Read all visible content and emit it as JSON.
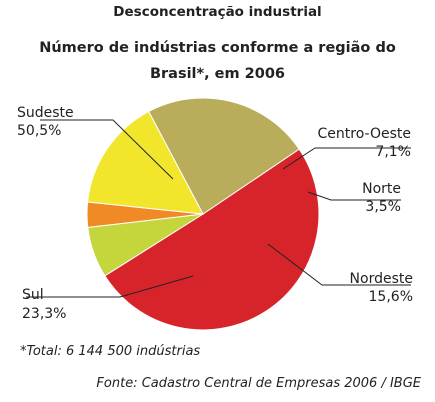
{
  "super_title": "Desconcentração industrial",
  "title_line1": "Número de indústrias conforme a região do",
  "title_line2": "Brasil*, em 2006",
  "chart_data": {
    "type": "pie",
    "title": "Número de indústrias conforme a região do Brasil*, em 2006",
    "unit": "%",
    "slices": [
      {
        "name": "Sudeste",
        "label": "50,5%",
        "value": 50.5,
        "color": "#d7242a"
      },
      {
        "name": "Centro-Oeste",
        "label": "7,1%",
        "value": 7.1,
        "color": "#c5d63d"
      },
      {
        "name": "Norte",
        "label": "3,5%",
        "value": 3.5,
        "color": "#f08a24"
      },
      {
        "name": "Nordeste",
        "label": "15,6%",
        "value": 15.6,
        "color": "#f2e62d"
      },
      {
        "name": "Sul",
        "label": "23,3%",
        "value": 23.3,
        "color": "#b9ad5c"
      }
    ]
  },
  "footnote": "*Total: 6 144 500 indústrias",
  "source": "Fonte: Cadastro Central de Empresas 2006 / IBGE"
}
